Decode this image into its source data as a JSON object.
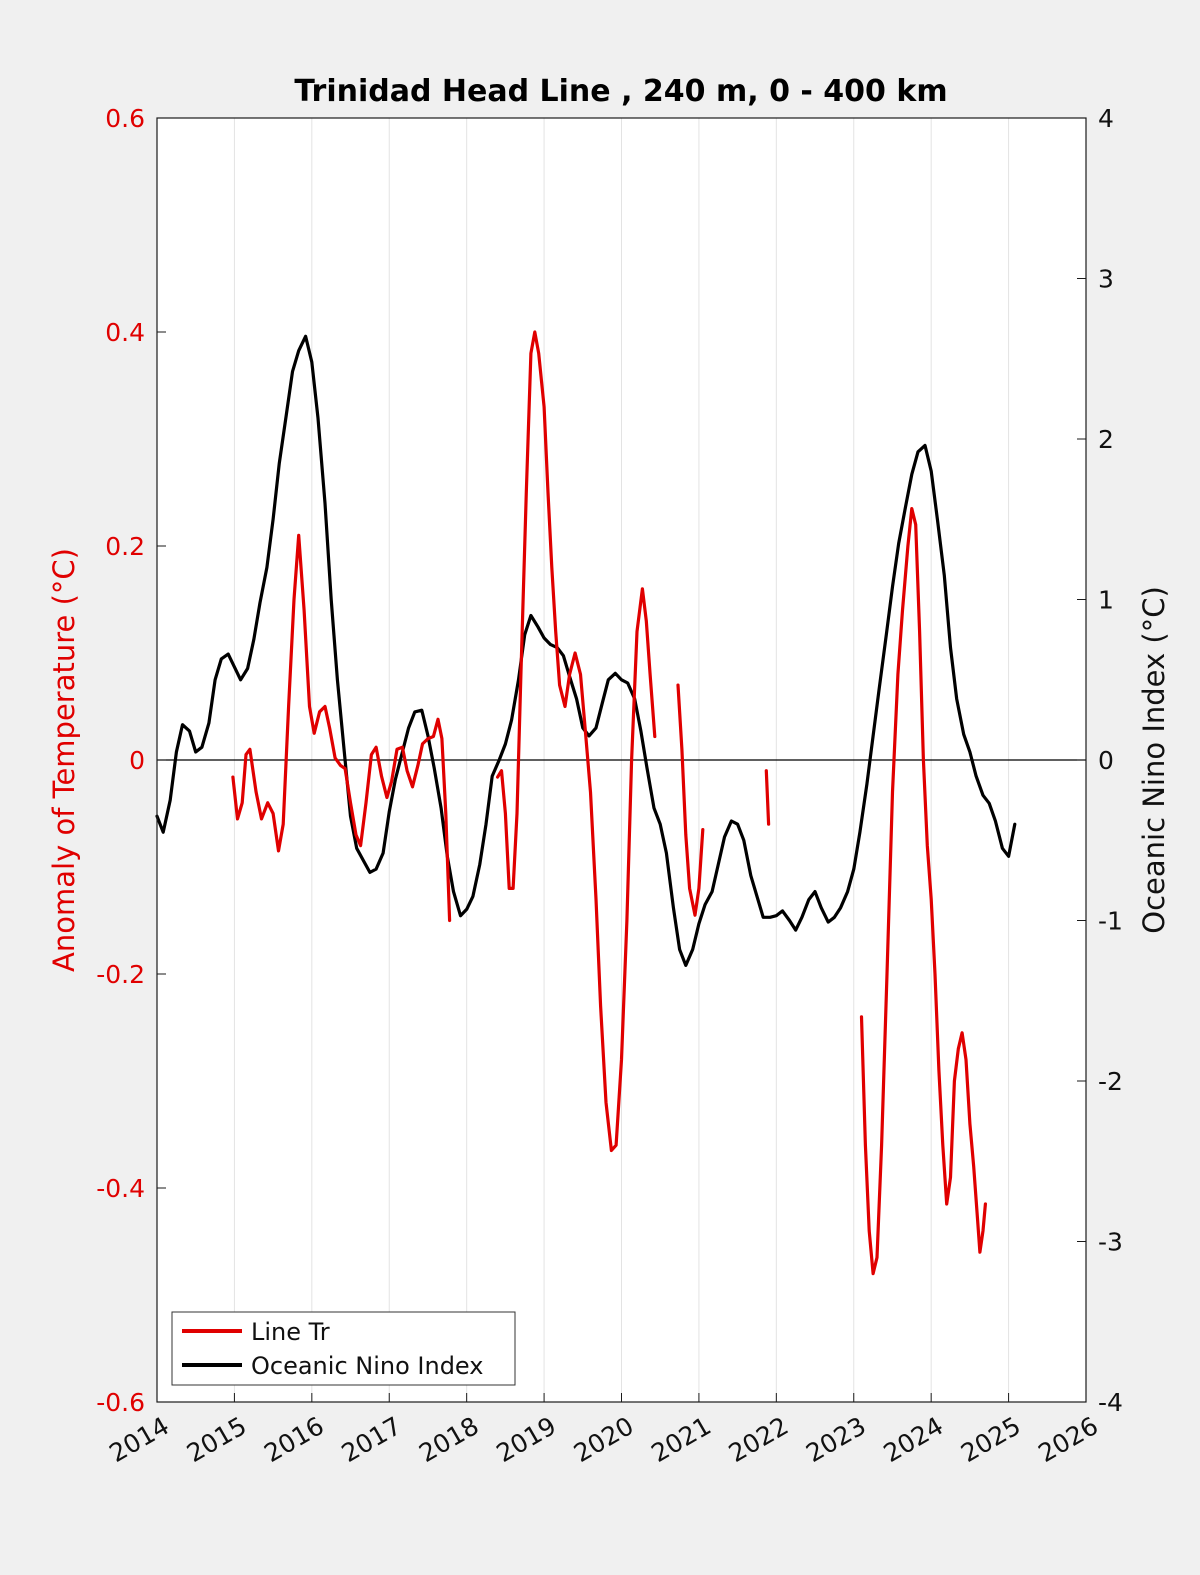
{
  "chart_data": {
    "type": "line",
    "title": "Trinidad Head Line , 240 m, 0 - 400 km",
    "ylabel_left": "Anomaly of Temperature (°C)",
    "ylabel_right": "Oceanic Nino Index (°C)",
    "xlim": [
      2014,
      2026
    ],
    "ylim_left": [
      -0.6,
      0.6
    ],
    "ylim_right": [
      -4,
      4
    ],
    "x_ticks": [
      "2014",
      "2015",
      "2016",
      "2017",
      "2018",
      "2019",
      "2020",
      "2021",
      "2022",
      "2023",
      "2024",
      "2025",
      "2026"
    ],
    "y_ticks_left": [
      "-0.6",
      "-0.4",
      "-0.2",
      "0",
      "0.2",
      "0.4",
      "0.6"
    ],
    "y_ticks_right": [
      "-4",
      "-3",
      "-2",
      "-1",
      "0",
      "1",
      "2",
      "3",
      "4"
    ],
    "grid": "vertical",
    "legend_position": "bottom-left",
    "colors": {
      "line_tr": "#e00000",
      "oni": "#000000",
      "plot_bg": "#ffffff",
      "figure_bg": "#f0f0f0"
    },
    "series": [
      {
        "name": "Line Tr",
        "axis": "left",
        "segments": [
          [
            [
              2014.98,
              -0.016
            ],
            [
              2015.04,
              -0.055
            ],
            [
              2015.1,
              -0.04
            ],
            [
              2015.15,
              0.005
            ],
            [
              2015.2,
              0.01
            ],
            [
              2015.28,
              -0.03
            ],
            [
              2015.35,
              -0.055
            ],
            [
              2015.43,
              -0.04
            ],
            [
              2015.5,
              -0.05
            ],
            [
              2015.57,
              -0.085
            ],
            [
              2015.63,
              -0.06
            ],
            [
              2015.7,
              0.05
            ],
            [
              2015.77,
              0.15
            ],
            [
              2015.83,
              0.21
            ],
            [
              2015.9,
              0.14
            ],
            [
              2015.97,
              0.05
            ],
            [
              2016.03,
              0.025
            ],
            [
              2016.1,
              0.045
            ],
            [
              2016.17,
              0.05
            ],
            [
              2016.23,
              0.03
            ],
            [
              2016.3,
              0.002
            ],
            [
              2016.37,
              -0.005
            ],
            [
              2016.43,
              -0.008
            ],
            [
              2016.5,
              -0.04
            ],
            [
              2016.57,
              -0.07
            ],
            [
              2016.63,
              -0.08
            ],
            [
              2016.7,
              -0.04
            ],
            [
              2016.77,
              0.005
            ],
            [
              2016.83,
              0.012
            ],
            [
              2016.9,
              -0.015
            ],
            [
              2016.97,
              -0.035
            ],
            [
              2017.03,
              -0.02
            ],
            [
              2017.1,
              0.01
            ],
            [
              2017.17,
              0.012
            ],
            [
              2017.23,
              -0.01
            ],
            [
              2017.3,
              -0.025
            ],
            [
              2017.37,
              -0.005
            ],
            [
              2017.43,
              0.015
            ],
            [
              2017.5,
              0.02
            ],
            [
              2017.57,
              0.022
            ],
            [
              2017.63,
              0.038
            ],
            [
              2017.68,
              0.02
            ],
            [
              2017.73,
              -0.05
            ],
            [
              2017.78,
              -0.15
            ]
          ],
          [
            [
              2018.4,
              -0.016
            ],
            [
              2018.45,
              -0.01
            ],
            [
              2018.5,
              -0.05
            ],
            [
              2018.55,
              -0.12
            ],
            [
              2018.6,
              -0.12
            ],
            [
              2018.65,
              -0.05
            ],
            [
              2018.7,
              0.08
            ],
            [
              2018.77,
              0.25
            ],
            [
              2018.83,
              0.38
            ],
            [
              2018.88,
              0.4
            ],
            [
              2018.93,
              0.38
            ],
            [
              2019.0,
              0.33
            ],
            [
              2019.05,
              0.25
            ],
            [
              2019.1,
              0.18
            ],
            [
              2019.15,
              0.12
            ],
            [
              2019.2,
              0.07
            ],
            [
              2019.27,
              0.05
            ],
            [
              2019.33,
              0.08
            ],
            [
              2019.4,
              0.1
            ],
            [
              2019.47,
              0.08
            ],
            [
              2019.53,
              0.03
            ],
            [
              2019.6,
              -0.03
            ],
            [
              2019.67,
              -0.13
            ],
            [
              2019.73,
              -0.23
            ],
            [
              2019.8,
              -0.32
            ],
            [
              2019.87,
              -0.365
            ],
            [
              2019.93,
              -0.36
            ],
            [
              2020.0,
              -0.28
            ],
            [
              2020.07,
              -0.15
            ],
            [
              2020.13,
              0.0
            ],
            [
              2020.2,
              0.12
            ],
            [
              2020.27,
              0.16
            ],
            [
              2020.32,
              0.13
            ],
            [
              2020.37,
              0.08
            ],
            [
              2020.43,
              0.022
            ]
          ],
          [
            [
              2020.73,
              0.07
            ],
            [
              2020.78,
              0.01
            ],
            [
              2020.83,
              -0.07
            ],
            [
              2020.88,
              -0.12
            ],
            [
              2020.95,
              -0.145
            ],
            [
              2021.0,
              -0.12
            ],
            [
              2021.05,
              -0.065
            ]
          ],
          [
            [
              2021.87,
              -0.01
            ],
            [
              2021.9,
              -0.06
            ]
          ],
          [
            [
              2023.1,
              -0.24
            ],
            [
              2023.15,
              -0.36
            ],
            [
              2023.2,
              -0.44
            ],
            [
              2023.25,
              -0.48
            ],
            [
              2023.3,
              -0.465
            ],
            [
              2023.36,
              -0.36
            ],
            [
              2023.43,
              -0.2
            ],
            [
              2023.5,
              -0.03
            ],
            [
              2023.57,
              0.08
            ],
            [
              2023.63,
              0.14
            ],
            [
              2023.7,
              0.2
            ],
            [
              2023.75,
              0.235
            ],
            [
              2023.8,
              0.22
            ],
            [
              2023.85,
              0.12
            ],
            [
              2023.9,
              0.0
            ],
            [
              2023.95,
              -0.08
            ],
            [
              2024.0,
              -0.13
            ],
            [
              2024.05,
              -0.2
            ],
            [
              2024.1,
              -0.29
            ],
            [
              2024.15,
              -0.36
            ],
            [
              2024.2,
              -0.415
            ],
            [
              2024.25,
              -0.39
            ],
            [
              2024.3,
              -0.3
            ],
            [
              2024.35,
              -0.27
            ],
            [
              2024.4,
              -0.255
            ],
            [
              2024.45,
              -0.28
            ],
            [
              2024.5,
              -0.34
            ],
            [
              2024.55,
              -0.38
            ],
            [
              2024.6,
              -0.43
            ],
            [
              2024.63,
              -0.46
            ],
            [
              2024.67,
              -0.44
            ],
            [
              2024.7,
              -0.415
            ]
          ]
        ]
      },
      {
        "name": "Oceanic Nino Index",
        "axis": "right",
        "segments": [
          [
            [
              2014.0,
              -0.35
            ],
            [
              2014.08,
              -0.45
            ],
            [
              2014.17,
              -0.25
            ],
            [
              2014.25,
              0.05
            ],
            [
              2014.33,
              0.22
            ],
            [
              2014.42,
              0.18
            ],
            [
              2014.5,
              0.05
            ],
            [
              2014.58,
              0.08
            ],
            [
              2014.67,
              0.23
            ],
            [
              2014.75,
              0.5
            ],
            [
              2014.83,
              0.63
            ],
            [
              2014.92,
              0.66
            ],
            [
              2015.0,
              0.58
            ],
            [
              2015.08,
              0.5
            ],
            [
              2015.17,
              0.57
            ],
            [
              2015.25,
              0.75
            ],
            [
              2015.33,
              0.98
            ],
            [
              2015.42,
              1.2
            ],
            [
              2015.5,
              1.5
            ],
            [
              2015.58,
              1.85
            ],
            [
              2015.67,
              2.15
            ],
            [
              2015.75,
              2.42
            ],
            [
              2015.83,
              2.55
            ],
            [
              2015.92,
              2.64
            ],
            [
              2016.0,
              2.48
            ],
            [
              2016.08,
              2.13
            ],
            [
              2016.17,
              1.6
            ],
            [
              2016.25,
              1.0
            ],
            [
              2016.33,
              0.5
            ],
            [
              2016.42,
              0.05
            ],
            [
              2016.5,
              -0.35
            ],
            [
              2016.58,
              -0.55
            ],
            [
              2016.67,
              -0.63
            ],
            [
              2016.75,
              -0.7
            ],
            [
              2016.83,
              -0.68
            ],
            [
              2016.92,
              -0.58
            ],
            [
              2017.0,
              -0.32
            ],
            [
              2017.08,
              -0.12
            ],
            [
              2017.17,
              0.05
            ],
            [
              2017.25,
              0.2
            ],
            [
              2017.33,
              0.3
            ],
            [
              2017.42,
              0.31
            ],
            [
              2017.5,
              0.15
            ],
            [
              2017.58,
              -0.05
            ],
            [
              2017.67,
              -0.3
            ],
            [
              2017.75,
              -0.6
            ],
            [
              2017.83,
              -0.82
            ],
            [
              2017.92,
              -0.97
            ],
            [
              2018.0,
              -0.93
            ],
            [
              2018.08,
              -0.85
            ],
            [
              2018.17,
              -0.65
            ],
            [
              2018.25,
              -0.4
            ],
            [
              2018.33,
              -0.1
            ],
            [
              2018.42,
              0.0
            ],
            [
              2018.5,
              0.1
            ],
            [
              2018.58,
              0.25
            ],
            [
              2018.67,
              0.5
            ],
            [
              2018.75,
              0.78
            ],
            [
              2018.83,
              0.9
            ],
            [
              2018.92,
              0.83
            ],
            [
              2019.0,
              0.76
            ],
            [
              2019.08,
              0.72
            ],
            [
              2019.17,
              0.7
            ],
            [
              2019.25,
              0.65
            ],
            [
              2019.33,
              0.52
            ],
            [
              2019.42,
              0.38
            ],
            [
              2019.5,
              0.2
            ],
            [
              2019.58,
              0.15
            ],
            [
              2019.67,
              0.2
            ],
            [
              2019.75,
              0.35
            ],
            [
              2019.83,
              0.5
            ],
            [
              2019.92,
              0.54
            ],
            [
              2020.0,
              0.5
            ],
            [
              2020.08,
              0.48
            ],
            [
              2020.17,
              0.38
            ],
            [
              2020.25,
              0.18
            ],
            [
              2020.33,
              -0.05
            ],
            [
              2020.42,
              -0.3
            ],
            [
              2020.5,
              -0.4
            ],
            [
              2020.58,
              -0.58
            ],
            [
              2020.67,
              -0.92
            ],
            [
              2020.75,
              -1.18
            ],
            [
              2020.83,
              -1.28
            ],
            [
              2020.92,
              -1.18
            ],
            [
              2021.0,
              -1.02
            ],
            [
              2021.08,
              -0.9
            ],
            [
              2021.17,
              -0.82
            ],
            [
              2021.25,
              -0.65
            ],
            [
              2021.33,
              -0.48
            ],
            [
              2021.42,
              -0.38
            ],
            [
              2021.5,
              -0.4
            ],
            [
              2021.58,
              -0.5
            ],
            [
              2021.67,
              -0.72
            ],
            [
              2021.75,
              -0.85
            ],
            [
              2021.83,
              -0.98
            ],
            [
              2021.92,
              -0.98
            ],
            [
              2022.0,
              -0.97
            ],
            [
              2022.08,
              -0.94
            ],
            [
              2022.17,
              -1.0
            ],
            [
              2022.25,
              -1.06
            ],
            [
              2022.33,
              -0.98
            ],
            [
              2022.42,
              -0.87
            ],
            [
              2022.5,
              -0.82
            ],
            [
              2022.58,
              -0.92
            ],
            [
              2022.67,
              -1.01
            ],
            [
              2022.75,
              -0.98
            ],
            [
              2022.83,
              -0.92
            ],
            [
              2022.92,
              -0.82
            ],
            [
              2023.0,
              -0.68
            ],
            [
              2023.08,
              -0.45
            ],
            [
              2023.17,
              -0.15
            ],
            [
              2023.25,
              0.15
            ],
            [
              2023.33,
              0.45
            ],
            [
              2023.42,
              0.78
            ],
            [
              2023.5,
              1.08
            ],
            [
              2023.58,
              1.35
            ],
            [
              2023.67,
              1.58
            ],
            [
              2023.75,
              1.78
            ],
            [
              2023.83,
              1.92
            ],
            [
              2023.92,
              1.96
            ],
            [
              2024.0,
              1.8
            ],
            [
              2024.08,
              1.5
            ],
            [
              2024.17,
              1.15
            ],
            [
              2024.25,
              0.7
            ],
            [
              2024.33,
              0.38
            ],
            [
              2024.42,
              0.16
            ],
            [
              2024.5,
              0.05
            ],
            [
              2024.58,
              -0.1
            ],
            [
              2024.67,
              -0.22
            ],
            [
              2024.75,
              -0.27
            ],
            [
              2024.83,
              -0.38
            ],
            [
              2024.92,
              -0.55
            ],
            [
              2025.0,
              -0.6
            ],
            [
              2025.08,
              -0.4
            ]
          ]
        ]
      }
    ]
  }
}
